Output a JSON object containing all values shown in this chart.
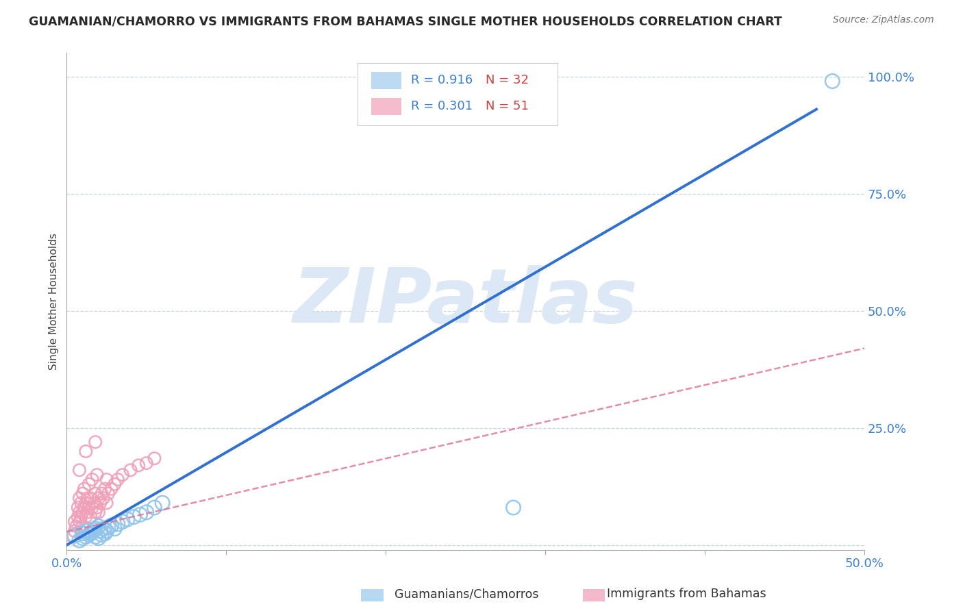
{
  "title": "GUAMANIAN/CHAMORRO VS IMMIGRANTS FROM BAHAMAS SINGLE MOTHER HOUSEHOLDS CORRELATION CHART",
  "source": "Source: ZipAtlas.com",
  "ylabel": "Single Mother Households",
  "xlim": [
    0.0,
    0.5
  ],
  "ylim": [
    -0.01,
    1.05
  ],
  "xticks": [
    0.0,
    0.1,
    0.2,
    0.3,
    0.4,
    0.5
  ],
  "xtick_labels": [
    "0.0%",
    "",
    "",
    "",
    "",
    "50.0%"
  ],
  "yticks": [
    0.0,
    0.25,
    0.5,
    0.75,
    1.0
  ],
  "ytick_labels": [
    "",
    "25.0%",
    "50.0%",
    "75.0%",
    "100.0%"
  ],
  "series1_label": "Guamanians/Chamorros",
  "series1_R": "0.916",
  "series1_N": "32",
  "series1_color": "#90c4ea",
  "series1_line_color": "#3070d0",
  "series2_label": "Immigrants from Bahamas",
  "series2_R": "0.301",
  "series2_N": "51",
  "series2_color": "#f0a0b8",
  "series2_line_color": "#e07090",
  "watermark": "ZIPatlas",
  "watermark_color": "#dce8f5",
  "background_color": "#ffffff",
  "grid_color": "#c8d4e4",
  "title_color": "#282828",
  "axis_label_color": "#404040",
  "tick_label_color": "#3a7fd5",
  "legend_R_color": "#3a7fd5",
  "legend_N_color": "#d04040",
  "blue_scatter_x": [
    0.005,
    0.008,
    0.01,
    0.01,
    0.012,
    0.012,
    0.014,
    0.015,
    0.016,
    0.017,
    0.018,
    0.018,
    0.02,
    0.02,
    0.021,
    0.022,
    0.023,
    0.024,
    0.025,
    0.026,
    0.028,
    0.03,
    0.032,
    0.035,
    0.038,
    0.042,
    0.046,
    0.05,
    0.055,
    0.06,
    0.28,
    0.48
  ],
  "blue_scatter_y": [
    0.02,
    0.01,
    0.015,
    0.025,
    0.018,
    0.03,
    0.022,
    0.025,
    0.028,
    0.032,
    0.018,
    0.035,
    0.015,
    0.04,
    0.03,
    0.022,
    0.035,
    0.025,
    0.03,
    0.038,
    0.042,
    0.035,
    0.045,
    0.05,
    0.055,
    0.06,
    0.065,
    0.07,
    0.08,
    0.09,
    0.08,
    0.99
  ],
  "pink_scatter_x": [
    0.003,
    0.005,
    0.005,
    0.006,
    0.007,
    0.007,
    0.008,
    0.008,
    0.008,
    0.009,
    0.009,
    0.01,
    0.01,
    0.01,
    0.011,
    0.011,
    0.012,
    0.012,
    0.013,
    0.013,
    0.014,
    0.014,
    0.015,
    0.015,
    0.016,
    0.016,
    0.017,
    0.018,
    0.018,
    0.019,
    0.019,
    0.02,
    0.02,
    0.021,
    0.022,
    0.023,
    0.024,
    0.025,
    0.025,
    0.026,
    0.028,
    0.03,
    0.032,
    0.035,
    0.04,
    0.045,
    0.05,
    0.055,
    0.008,
    0.012,
    0.018
  ],
  "pink_scatter_y": [
    0.02,
    0.03,
    0.05,
    0.04,
    0.06,
    0.08,
    0.05,
    0.07,
    0.1,
    0.06,
    0.09,
    0.04,
    0.07,
    0.11,
    0.08,
    0.12,
    0.06,
    0.09,
    0.07,
    0.1,
    0.08,
    0.13,
    0.06,
    0.1,
    0.08,
    0.14,
    0.09,
    0.07,
    0.11,
    0.08,
    0.15,
    0.07,
    0.1,
    0.09,
    0.11,
    0.1,
    0.12,
    0.09,
    0.14,
    0.11,
    0.12,
    0.13,
    0.14,
    0.15,
    0.16,
    0.17,
    0.175,
    0.185,
    0.16,
    0.2,
    0.22
  ],
  "blue_line_x": [
    0.0,
    0.47
  ],
  "blue_line_y": [
    0.0,
    0.93
  ],
  "pink_line_x": [
    0.0,
    0.5
  ],
  "pink_line_y": [
    0.028,
    0.42
  ],
  "dot_size_blue": 220,
  "dot_size_pink": 160
}
